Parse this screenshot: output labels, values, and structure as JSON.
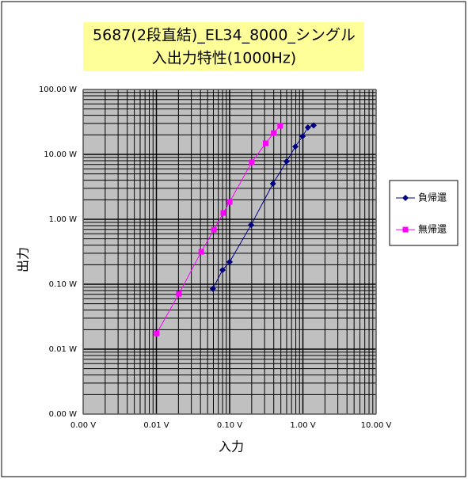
{
  "chart_data": {
    "type": "line",
    "title": [
      "5687(2段直結)_EL34_8000_シングル",
      "入出力特性(1000Hz)"
    ],
    "x_label": "入力",
    "y_label": "出力",
    "xscale": "log",
    "yscale": "log",
    "xlim": [
      0.001,
      10
    ],
    "ylim": [
      0.001,
      100
    ],
    "xticks": [
      {
        "value": 0.001,
        "label": "0.00 V"
      },
      {
        "value": 0.01,
        "label": "0.01 V"
      },
      {
        "value": 0.1,
        "label": "0.10 V"
      },
      {
        "value": 1,
        "label": "1.00 V"
      },
      {
        "value": 10,
        "label": "10.00 V"
      }
    ],
    "yticks": [
      {
        "value": 0.001,
        "label": "0.00 W"
      },
      {
        "value": 0.01,
        "label": "0.01 W"
      },
      {
        "value": 0.1,
        "label": "0.10 W"
      },
      {
        "value": 1,
        "label": "1.00 W"
      },
      {
        "value": 10,
        "label": "10.00 W"
      },
      {
        "value": 100,
        "label": "100.00 W"
      }
    ],
    "xminorticks": [
      0.002,
      0.003,
      0.004,
      0.005,
      0.006,
      0.007,
      0.008,
      0.009,
      0.02,
      0.03,
      0.04,
      0.05,
      0.06,
      0.07,
      0.08,
      0.09,
      0.2,
      0.3,
      0.4,
      0.5,
      0.6,
      0.7,
      0.8,
      0.9,
      2,
      3,
      4,
      5,
      6,
      7,
      8,
      9
    ],
    "yminorticks": [
      0.002,
      0.003,
      0.004,
      0.005,
      0.006,
      0.007,
      0.008,
      0.009,
      0.02,
      0.03,
      0.04,
      0.05,
      0.06,
      0.07,
      0.08,
      0.09,
      0.2,
      0.3,
      0.4,
      0.5,
      0.6,
      0.7,
      0.8,
      0.9,
      2,
      3,
      4,
      5,
      6,
      7,
      8,
      9,
      20,
      30,
      40,
      50,
      60,
      70,
      80,
      90
    ],
    "grid": true,
    "legend": "right",
    "series": [
      {
        "name": "負帰還",
        "color": "#000080",
        "marker": "diamond",
        "x": [
          0.059,
          0.08,
          0.1,
          0.196,
          0.39,
          0.6,
          0.79,
          0.99,
          1.17,
          1.4
        ],
        "values": [
          0.085,
          0.166,
          0.22,
          0.82,
          3.54,
          7.8,
          13.2,
          19,
          26,
          28
        ]
      },
      {
        "name": "無帰還",
        "color": "#ff00ff",
        "marker": "square",
        "x": [
          0.0101,
          0.0203,
          0.041,
          0.061,
          0.082,
          0.1,
          0.2,
          0.31,
          0.4,
          0.49
        ],
        "values": [
          0.0175,
          0.071,
          0.316,
          0.69,
          1.25,
          1.85,
          7.55,
          14.8,
          21.3,
          27.5
        ]
      }
    ]
  }
}
